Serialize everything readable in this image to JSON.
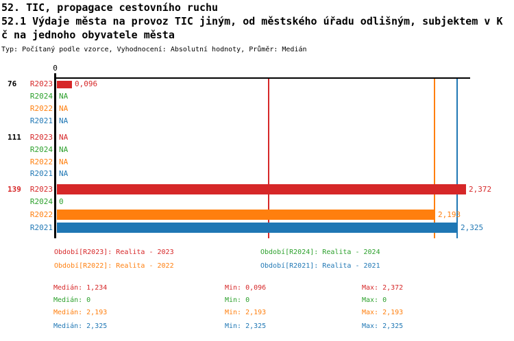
{
  "header": {
    "line1": "52. TIC, propagace cestovního ruchu",
    "line2": "52.1 Výdaje města na provoz TIC jiným, od městského úřadu odlišným, subjektem v K",
    "line3": "č na jednoho obyvatele města",
    "meta": "Typ: Počítaný podle vzorce, Vyhodnocení: Absolutní hodnoty, Průměr: Medián"
  },
  "colors": {
    "R2023": "#d62728",
    "R2024": "#2ca02c",
    "R2022": "#ff7f0e",
    "R2021": "#1f77b4",
    "axis": "#000000",
    "group_76": "#000000",
    "group_111": "#000000",
    "group_139": "#d62728"
  },
  "chart_data": {
    "type": "bar",
    "orientation": "horizontal",
    "title": "52.1 Výdaje města na provoz TIC jiným, od městského úřadu odlišným, subjektem v Kč na jednoho obyvatele města",
    "xlabel": "",
    "ylabel": "",
    "xlim": [
      0,
      2.4
    ],
    "axis_zero_label": "0",
    "grid": false,
    "legend_position": "bottom",
    "series_order": [
      "R2023",
      "R2024",
      "R2022",
      "R2021"
    ],
    "groups": [
      {
        "label": "76",
        "label_color_key": "group_76",
        "rows": [
          {
            "series": "R2023",
            "value": 0.096,
            "display": "0,096"
          },
          {
            "series": "R2024",
            "value": null,
            "display": "NA"
          },
          {
            "series": "R2022",
            "value": null,
            "display": "NA"
          },
          {
            "series": "R2021",
            "value": null,
            "display": "NA"
          }
        ]
      },
      {
        "label": "111",
        "label_color_key": "group_111",
        "rows": [
          {
            "series": "R2023",
            "value": null,
            "display": "NA"
          },
          {
            "series": "R2024",
            "value": null,
            "display": "NA"
          },
          {
            "series": "R2022",
            "value": null,
            "display": "NA"
          },
          {
            "series": "R2021",
            "value": null,
            "display": "NA"
          }
        ]
      },
      {
        "label": "139",
        "label_color_key": "group_139",
        "rows": [
          {
            "series": "R2023",
            "value": 2.372,
            "display": "2,372"
          },
          {
            "series": "R2024",
            "value": 0,
            "display": "0"
          },
          {
            "series": "R2022",
            "value": 2.193,
            "display": "2,193"
          },
          {
            "series": "R2021",
            "value": 2.325,
            "display": "2,325"
          }
        ]
      }
    ],
    "median_lines": [
      {
        "series": "R2023",
        "value": 1.234
      },
      {
        "series": "R2022",
        "value": 2.193
      },
      {
        "series": "R2021",
        "value": 2.325
      }
    ]
  },
  "legend": {
    "items": [
      {
        "series": "R2023",
        "label": "Období[R2023]: Realita - 2023",
        "col": 0,
        "row": 0
      },
      {
        "series": "R2024",
        "label": "Období[R2024]: Realita - 2024",
        "col": 1,
        "row": 0
      },
      {
        "series": "R2022",
        "label": "Období[R2022]: Realita - 2022",
        "col": 0,
        "row": 1
      },
      {
        "series": "R2021",
        "label": "Období[R2021]: Realita - 2021",
        "col": 1,
        "row": 1
      }
    ]
  },
  "stats": {
    "rows": [
      {
        "series": "R2023",
        "median": "Medián: 1,234",
        "min": "Min: 0,096",
        "max": "Max: 2,372"
      },
      {
        "series": "R2024",
        "median": "Medián: 0",
        "min": "Min: 0",
        "max": "Max: 0"
      },
      {
        "series": "R2022",
        "median": "Medián: 2,193",
        "min": "Min: 2,193",
        "max": "Max: 2,193"
      },
      {
        "series": "R2021",
        "median": "Medián: 2,325",
        "min": "Min: 2,325",
        "max": "Max: 2,325"
      }
    ]
  }
}
